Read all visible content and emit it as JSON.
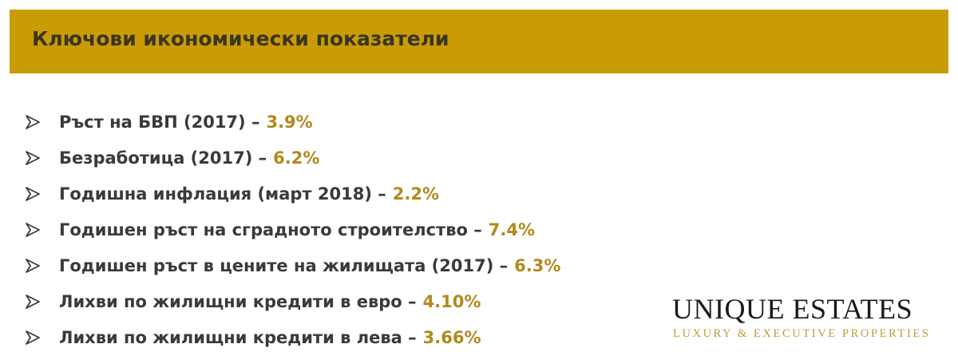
{
  "header": {
    "title": "Ключови икономически показатели"
  },
  "items": [
    {
      "label": "Ръст на БВП (2017) –",
      "value": "3.9%"
    },
    {
      "label": "Безработица (2017) –",
      "value": "6.2%"
    },
    {
      "label": "Годишна инфлация (март 2018) –",
      "value": "2.2%"
    },
    {
      "label": "Годишен ръст на сградното строителство –",
      "value": "7.4%"
    },
    {
      "label": "Годишен ръст в цените на жилищата (2017) –",
      "value": "6.3%"
    },
    {
      "label": "Лихви по жилищни кредити в евро –",
      "value": "4.10%"
    },
    {
      "label": "Лихви по жилищни кредити в лева –",
      "value": "3.66%"
    }
  ],
  "logo": {
    "name": "UNIQUE ESTATES",
    "tagline": "LUXURY & EXECUTIVE PROPERTIES"
  }
}
